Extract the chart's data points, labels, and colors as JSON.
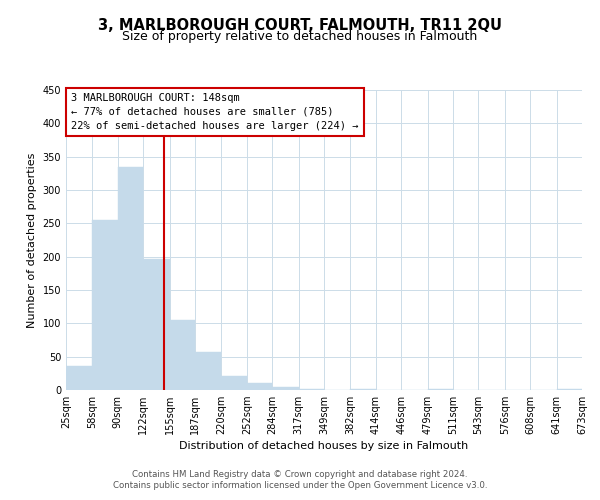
{
  "title": "3, MARLBOROUGH COURT, FALMOUTH, TR11 2QU",
  "subtitle": "Size of property relative to detached houses in Falmouth",
  "xlabel": "Distribution of detached houses by size in Falmouth",
  "ylabel": "Number of detached properties",
  "bar_color": "#c5daea",
  "redline_x": 148,
  "annotation_title": "3 MARLBOROUGH COURT: 148sqm",
  "annotation_line1": "← 77% of detached houses are smaller (785)",
  "annotation_line2": "22% of semi-detached houses are larger (224) →",
  "bins": [
    25,
    58,
    90,
    122,
    155,
    187,
    220,
    252,
    284,
    317,
    349,
    382,
    414,
    446,
    479,
    511,
    543,
    576,
    608,
    641,
    673
  ],
  "counts": [
    36,
    255,
    335,
    196,
    105,
    57,
    21,
    11,
    5,
    1,
    0,
    2,
    0,
    0,
    1,
    0,
    0,
    0,
    0,
    2
  ],
  "tick_labels": [
    "25sqm",
    "58sqm",
    "90sqm",
    "122sqm",
    "155sqm",
    "187sqm",
    "220sqm",
    "252sqm",
    "284sqm",
    "317sqm",
    "349sqm",
    "382sqm",
    "414sqm",
    "446sqm",
    "479sqm",
    "511sqm",
    "543sqm",
    "576sqm",
    "608sqm",
    "641sqm",
    "673sqm"
  ],
  "yticks": [
    0,
    50,
    100,
    150,
    200,
    250,
    300,
    350,
    400,
    450
  ],
  "ylim": [
    0,
    450
  ],
  "footer1": "Contains HM Land Registry data © Crown copyright and database right 2024.",
  "footer2": "Contains public sector information licensed under the Open Government Licence v3.0.",
  "background_color": "#ffffff",
  "grid_color": "#ccdce8",
  "annotation_box_color": "#ffffff",
  "annotation_box_edge": "#cc0000",
  "redline_color": "#cc0000",
  "title_fontsize": 10.5,
  "subtitle_fontsize": 9,
  "axis_label_fontsize": 8,
  "tick_fontsize": 7,
  "annotation_fontsize": 7.5,
  "footer_fontsize": 6.2
}
